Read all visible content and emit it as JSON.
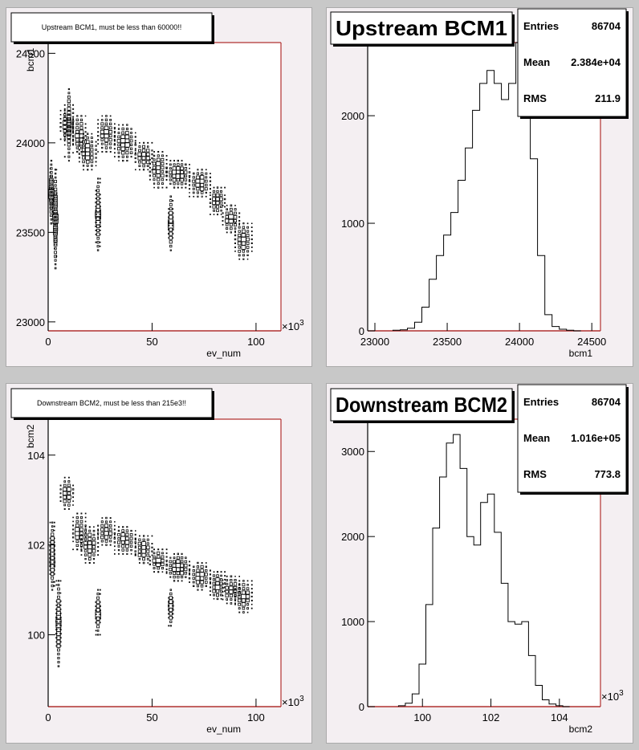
{
  "chart_data": [
    {
      "type": "scatter",
      "title": "Upstream BCM1, must be less than 60000!!",
      "xlabel": "ev_num",
      "ylabel": "bcm1",
      "x_exponent": "×10^3",
      "xlim": [
        0,
        112
      ],
      "ylim": [
        22950,
        24560
      ],
      "xticks": [
        0,
        50,
        100
      ],
      "yticks": [
        23000,
        23500,
        24000,
        24500
      ],
      "bands": [
        {
          "x": [
            1,
            2
          ],
          "y": [
            23550,
            23900
          ]
        },
        {
          "x": [
            3,
            4
          ],
          "y": [
            23300,
            23850
          ]
        },
        {
          "x": [
            6,
            12
          ],
          "y": [
            24020,
            24180
          ]
        },
        {
          "x": [
            8,
            12
          ],
          "y": [
            23900,
            24300
          ]
        },
        {
          "x": [
            12,
            18
          ],
          "y": [
            23950,
            24150
          ]
        },
        {
          "x": [
            15,
            23
          ],
          "y": [
            23850,
            24050
          ]
        },
        {
          "x": [
            23,
            25
          ],
          "y": [
            23400,
            23800
          ]
        },
        {
          "x": [
            24,
            32
          ],
          "y": [
            23950,
            24150
          ]
        },
        {
          "x": [
            32,
            42
          ],
          "y": [
            23900,
            24100
          ]
        },
        {
          "x": [
            42,
            50
          ],
          "y": [
            23850,
            24000
          ]
        },
        {
          "x": [
            49,
            57
          ],
          "y": [
            23750,
            23950
          ]
        },
        {
          "x": [
            58,
            60
          ],
          "y": [
            23400,
            23700
          ]
        },
        {
          "x": [
            57,
            68
          ],
          "y": [
            23750,
            23900
          ]
        },
        {
          "x": [
            68,
            78
          ],
          "y": [
            23700,
            23850
          ]
        },
        {
          "x": [
            78,
            85
          ],
          "y": [
            23600,
            23750
          ]
        },
        {
          "x": [
            84,
            92
          ],
          "y": [
            23500,
            23650
          ]
        },
        {
          "x": [
            90,
            98
          ],
          "y": [
            23350,
            23550
          ]
        }
      ]
    },
    {
      "type": "bar",
      "title": "Upstream BCM1",
      "xlabel": "bcm1",
      "xlim": [
        22950,
        24560
      ],
      "ylim": [
        0,
        2680
      ],
      "xticks": [
        23000,
        23500,
        24000,
        24500
      ],
      "yticks": [
        0,
        1000,
        2000
      ],
      "stats": [
        {
          "label": "Entries",
          "value": "86704"
        },
        {
          "label": "Mean",
          "value": "2.384e+04"
        },
        {
          "label": "RMS",
          "value": "211.9"
        }
      ],
      "x": [
        23150,
        23200,
        23250,
        23300,
        23350,
        23400,
        23450,
        23500,
        23550,
        23600,
        23650,
        23700,
        23750,
        23800,
        23850,
        23900,
        23950,
        24000,
        24050,
        24100,
        24150,
        24200,
        24250,
        24300,
        24350,
        24400
      ],
      "values": [
        5,
        10,
        25,
        80,
        220,
        480,
        700,
        890,
        1100,
        1400,
        1700,
        2050,
        2300,
        2420,
        2300,
        2150,
        2300,
        2680,
        2650,
        1600,
        700,
        150,
        40,
        15,
        5,
        0
      ]
    },
    {
      "type": "scatter",
      "title": "Downstream BCM2, must be less than 215e3!!",
      "xlabel": "ev_num",
      "ylabel": "bcm2",
      "x_exponent": "×10^3",
      "xlim": [
        0,
        112
      ],
      "ylim": [
        98.4,
        104.8
      ],
      "xticks": [
        0,
        50,
        100
      ],
      "yticks": [
        100,
        102,
        104
      ],
      "bands": [
        {
          "x": [
            1,
            3
          ],
          "y": [
            101.0,
            102.5
          ]
        },
        {
          "x": [
            4,
            6
          ],
          "y": [
            99.3,
            101.2
          ]
        },
        {
          "x": [
            6,
            12
          ],
          "y": [
            102.8,
            103.5
          ]
        },
        {
          "x": [
            12,
            18
          ],
          "y": [
            101.9,
            102.7
          ]
        },
        {
          "x": [
            16,
            24
          ],
          "y": [
            101.6,
            102.4
          ]
        },
        {
          "x": [
            23,
            25
          ],
          "y": [
            100.0,
            101.0
          ]
        },
        {
          "x": [
            24,
            32
          ],
          "y": [
            102.0,
            102.6
          ]
        },
        {
          "x": [
            32,
            42
          ],
          "y": [
            101.8,
            102.4
          ]
        },
        {
          "x": [
            42,
            50
          ],
          "y": [
            101.6,
            102.2
          ]
        },
        {
          "x": [
            49,
            57
          ],
          "y": [
            101.4,
            101.9
          ]
        },
        {
          "x": [
            58,
            60
          ],
          "y": [
            100.2,
            101.0
          ]
        },
        {
          "x": [
            57,
            68
          ],
          "y": [
            101.2,
            101.8
          ]
        },
        {
          "x": [
            68,
            78
          ],
          "y": [
            101.0,
            101.6
          ]
        },
        {
          "x": [
            78,
            85
          ],
          "y": [
            100.8,
            101.4
          ]
        },
        {
          "x": [
            84,
            92
          ],
          "y": [
            100.7,
            101.3
          ]
        },
        {
          "x": [
            90,
            98
          ],
          "y": [
            100.5,
            101.2
          ]
        }
      ]
    },
    {
      "type": "bar",
      "title": "Downstream BCM2",
      "xlabel": "bcm2",
      "x_exponent": "×10^3",
      "xlim": [
        98.4,
        105.2
      ],
      "ylim": [
        0,
        3380
      ],
      "xticks": [
        100,
        102,
        104
      ],
      "yticks": [
        0,
        1000,
        2000,
        3000
      ],
      "stats": [
        {
          "label": "Entries",
          "value": "86704"
        },
        {
          "label": "Mean",
          "value": "1.016e+05"
        },
        {
          "label": "RMS",
          "value": "773.8"
        }
      ],
      "x": [
        99.4,
        99.6,
        99.8,
        100.0,
        100.2,
        100.4,
        100.6,
        100.8,
        101.0,
        101.2,
        101.4,
        101.6,
        101.8,
        102.0,
        102.2,
        102.4,
        102.6,
        102.8,
        103.0,
        103.2,
        103.4,
        103.6,
        103.8,
        104.0,
        104.2
      ],
      "values": [
        10,
        40,
        150,
        500,
        1200,
        2100,
        2700,
        3100,
        3200,
        2800,
        2000,
        1900,
        2400,
        2500,
        2050,
        1450,
        1000,
        970,
        1000,
        600,
        250,
        80,
        30,
        10,
        0
      ]
    }
  ]
}
